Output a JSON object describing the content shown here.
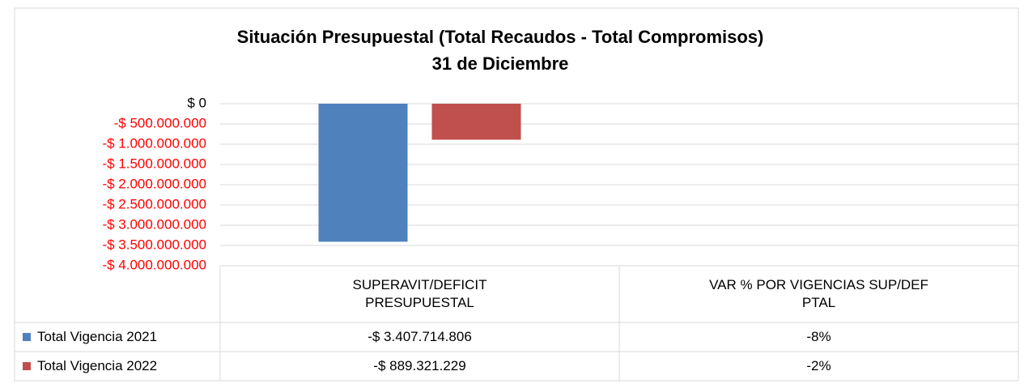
{
  "chart_data": {
    "type": "bar",
    "title": "Situación Presupuestal  (Total Recaudos - Total Compromisos)",
    "subtitle": "31 de Diciembre",
    "categories": [
      "SUPERAVIT/DEFICIT PRESUPUESTAL",
      "VAR % POR VIGENCIAS SUP/DEF PTAL"
    ],
    "series": [
      {
        "name": "Total Vigencia 2021",
        "color": "#4f81bd",
        "values": [
          -3407714806,
          -8
        ],
        "value_labels": [
          "-$ 3.407.714.806",
          "-8%"
        ]
      },
      {
        "name": "Total Vigencia 2022",
        "color": "#c0504d",
        "values": [
          -889321229,
          -2
        ],
        "value_labels": [
          "-$ 889.321.229",
          "-2%"
        ]
      }
    ],
    "ylim": [
      -4000000000,
      0
    ],
    "yticks": [
      {
        "value": 0,
        "label": "$ 0"
      },
      {
        "value": -500000000,
        "label": "-$ 500.000.000"
      },
      {
        "value": -1000000000,
        "label": "-$ 1.000.000.000"
      },
      {
        "value": -1500000000,
        "label": "-$ 1.500.000.000"
      },
      {
        "value": -2000000000,
        "label": "-$ 2.000.000.000"
      },
      {
        "value": -2500000000,
        "label": "-$ 2.500.000.000"
      },
      {
        "value": -3000000000,
        "label": "-$ 3.000.000.000"
      },
      {
        "value": -3500000000,
        "label": "-$ 3.500.000.000"
      },
      {
        "value": -4000000000,
        "label": "-$ 4.000.000.000"
      }
    ],
    "grid": true
  }
}
